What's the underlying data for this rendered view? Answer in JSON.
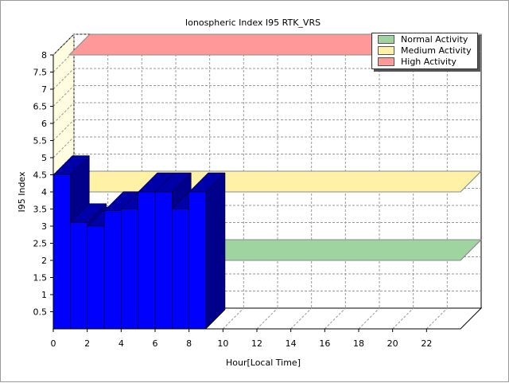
{
  "chart_data": {
    "type": "bar",
    "title": "Ionospheric Index I95 RTK_VRS",
    "xlabel": "Hour[Local Time]",
    "ylabel": "I95 Index",
    "ylim": [
      0,
      8
    ],
    "xlim": [
      0,
      24
    ],
    "y_ticks": [
      "0.5",
      "1",
      "1.5",
      "2",
      "2.5",
      "3",
      "3.5",
      "4",
      "4.5",
      "5",
      "5.5",
      "6",
      "6.5",
      "7",
      "7.5",
      "8"
    ],
    "x_ticks": [
      "0",
      "2",
      "4",
      "6",
      "8",
      "10",
      "12",
      "14",
      "16",
      "18",
      "20",
      "22"
    ],
    "series": [
      {
        "x": [
          0,
          1,
          2,
          3,
          4,
          5,
          6,
          7,
          8
        ],
        "values": [
          4.5,
          3.1,
          3.0,
          3.45,
          3.5,
          4.0,
          4.0,
          3.5,
          4.0
        ],
        "color": "#0000ff"
      }
    ],
    "bands": [
      {
        "name": "Normal Activity",
        "value": 2,
        "color": "#9fd3a0"
      },
      {
        "name": "Medium Activity",
        "value": 4,
        "color": "#fff2a6"
      },
      {
        "name": "High Activity",
        "value": 8,
        "color": "#ff9999"
      }
    ],
    "grid": true,
    "legend_position": "top-right"
  }
}
